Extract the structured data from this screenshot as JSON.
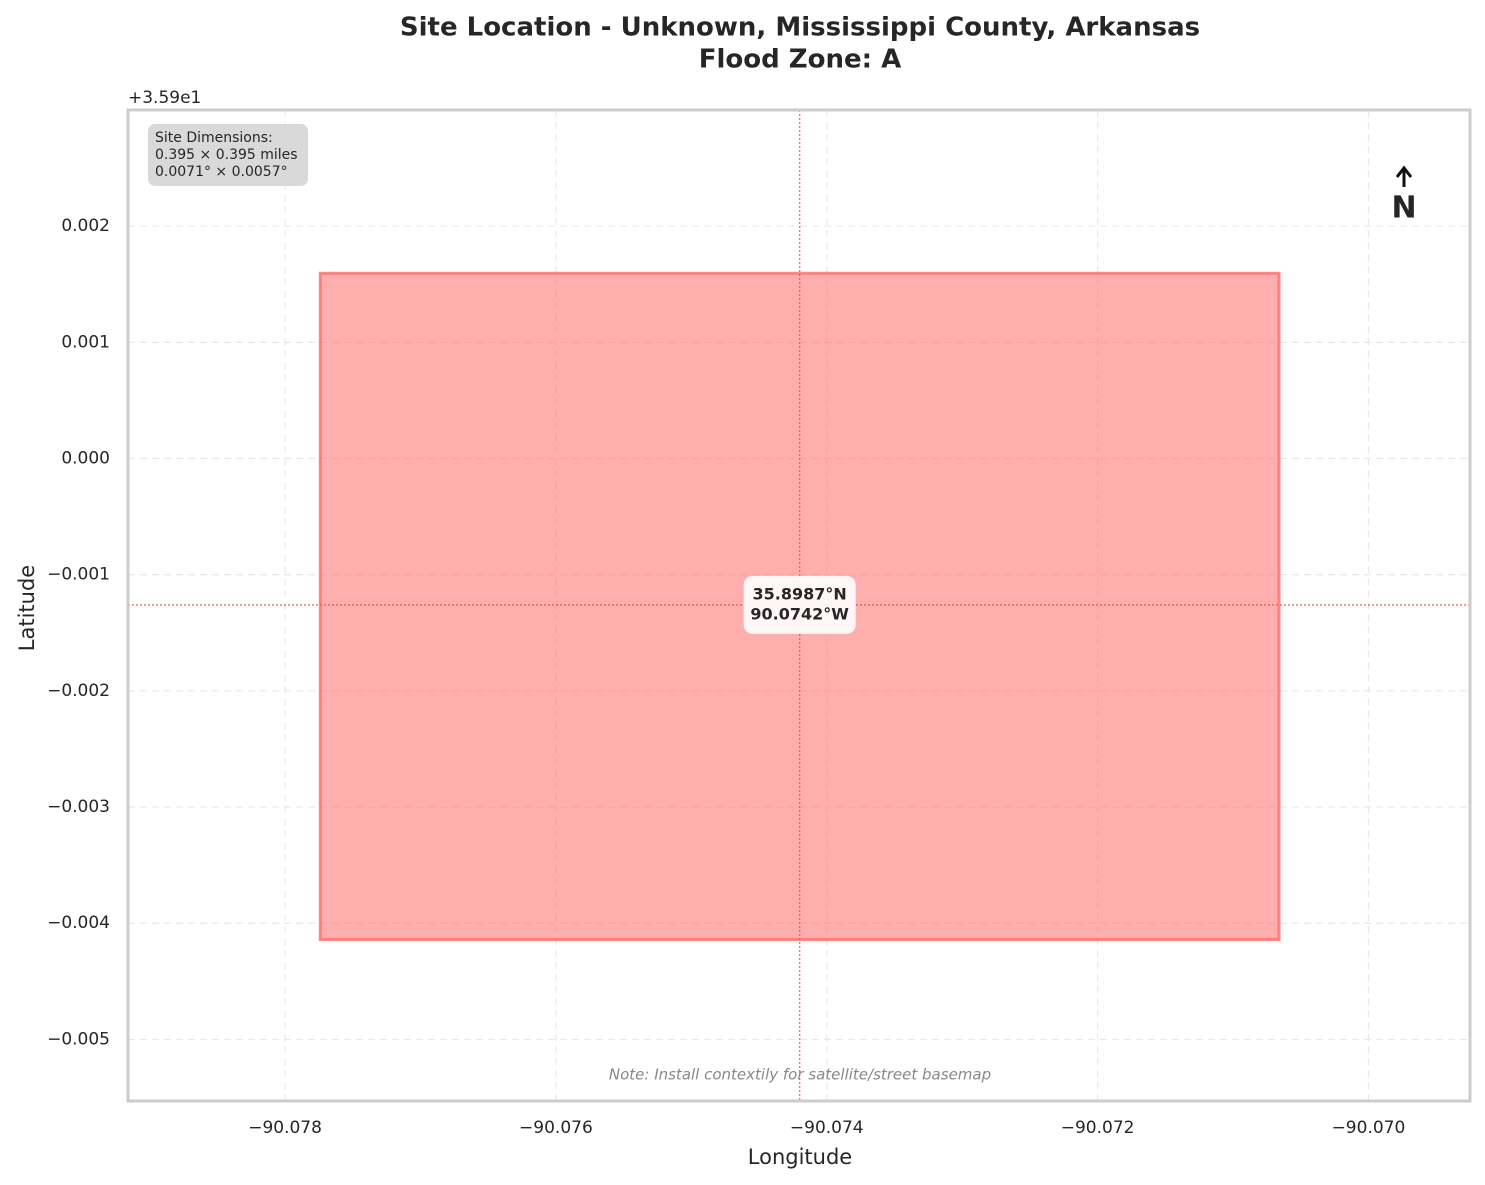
{
  "chart_data": {
    "type": "site_map",
    "title": "Site Location - Unknown, Mississippi County, Arkansas",
    "subtitle": "Flood Zone: A",
    "x_label": "Longitude",
    "y_label": "Latitude",
    "y_offset_label": "+3.59e1",
    "xlim": [
      -90.07916,
      -90.06925
    ],
    "ylim": [
      -0.00553,
      0.003
    ],
    "xticks": [
      {
        "value": -90.078,
        "label": "−90.078"
      },
      {
        "value": -90.076,
        "label": "−90.076"
      },
      {
        "value": -90.074,
        "label": "−90.074"
      },
      {
        "value": -90.072,
        "label": "−90.072"
      },
      {
        "value": -90.07,
        "label": "−90.070"
      }
    ],
    "yticks": [
      {
        "value": 0.002,
        "label": "0.002"
      },
      {
        "value": 0.001,
        "label": "0.001"
      },
      {
        "value": 0,
        "label": "0.000"
      },
      {
        "value": -0.001,
        "label": "−0.001"
      },
      {
        "value": -0.002,
        "label": "−0.002"
      },
      {
        "value": -0.003,
        "label": "−0.003"
      },
      {
        "value": -0.004,
        "label": "−0.004"
      },
      {
        "value": -0.005,
        "label": "−0.005"
      }
    ],
    "grid": true,
    "site": {
      "lon": [
        -90.07774,
        -90.07066
      ],
      "lat": [
        -0.00414,
        0.001595
      ],
      "color": "#ff6b6b"
    },
    "center": {
      "lon": -90.0742,
      "lat": -0.00126,
      "color": "#e74c3c",
      "label": [
        "35.8987°N",
        "90.0742°W"
      ]
    },
    "info_box": [
      "Site Dimensions:",
      "0.395 × 0.395 miles",
      "0.0071° × 0.0057°"
    ],
    "north_label": "N",
    "note": "Note: Install contextily for satellite/street basemap"
  }
}
